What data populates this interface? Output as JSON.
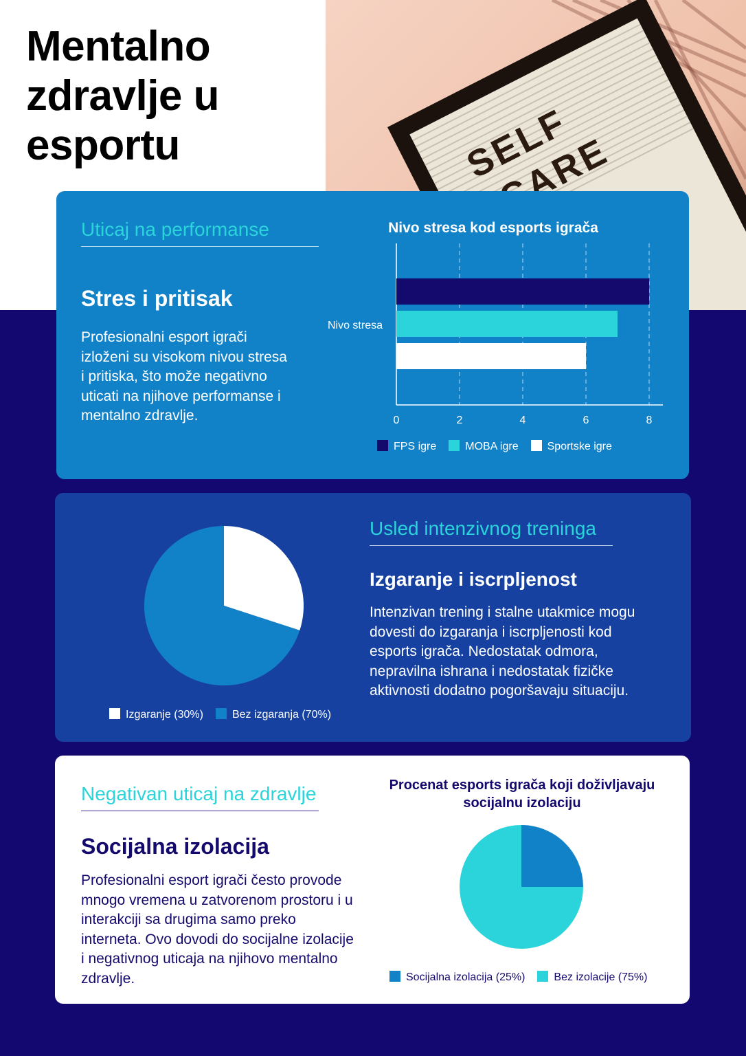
{
  "header": {
    "title": "Mentalno zdravlje u esportu"
  },
  "photo": {
    "letters": "SELF CARE"
  },
  "section1": {
    "kicker": "Uticaj na performanse",
    "heading": "Stres i pritisak",
    "body": "Profesionalni esport igrači izloženi su visokom nivou stresa i pritiska, što može negativno uticati na njihove performanse i mentalno zdravlje."
  },
  "section2": {
    "kicker": "Usled intenzivnog treninga",
    "heading": "Izgaranje i iscrpljenost",
    "body": "Intenzivan trening i stalne utakmice mogu dovesti do izgaranja i iscrpljenosti kod esports igrača. Nedostatak odmora, nepravilna ishrana i nedostatak fizičke aktivnosti dodatno pogoršavaju situaciju."
  },
  "section3": {
    "kicker": "Negativan uticaj na zdravlje",
    "heading": "Socijalna izolacija",
    "body": "Profesionalni esport igrači često provode mnogo vremena u zatvorenom prostoru i u interakciji sa drugima samo preko interneta. Ovo dovodi do socijalne izolacije i negativnog uticaja na njihovo mentalno zdravlje."
  },
  "chart_data": [
    {
      "type": "bar",
      "orientation": "horizontal",
      "title": "Nivo stresa kod esports igrača",
      "categories": [
        "Nivo stresa"
      ],
      "series": [
        {
          "name": "FPS igre",
          "values": [
            8
          ],
          "color": "#140a6e"
        },
        {
          "name": "MOBA igre",
          "values": [
            7
          ],
          "color": "#2ad4da"
        },
        {
          "name": "Sportske igre",
          "values": [
            6
          ],
          "color": "#ffffff"
        }
      ],
      "xlim": [
        0,
        8
      ],
      "xticks": [
        "0",
        "2",
        "4",
        "6",
        "8"
      ],
      "grid": true,
      "legend": "bottom"
    },
    {
      "type": "pie",
      "title": "",
      "slices": [
        {
          "label": "Izgaranje (30%)",
          "value": 30,
          "color": "#ffffff"
        },
        {
          "label": "Bez izgaranja (70%)",
          "value": 70,
          "color": "#1282c8"
        }
      ],
      "legend": "bottom"
    },
    {
      "type": "pie",
      "title": "Procenat esports igrača koji doživljavaju socijalnu izolaciju",
      "slices": [
        {
          "label": "Socijalna izolacija (25%)",
          "value": 25,
          "color": "#1282c8"
        },
        {
          "label": "Bez izolacije (75%)",
          "value": 75,
          "color": "#2ad4da"
        }
      ],
      "legend": "bottom"
    }
  ]
}
